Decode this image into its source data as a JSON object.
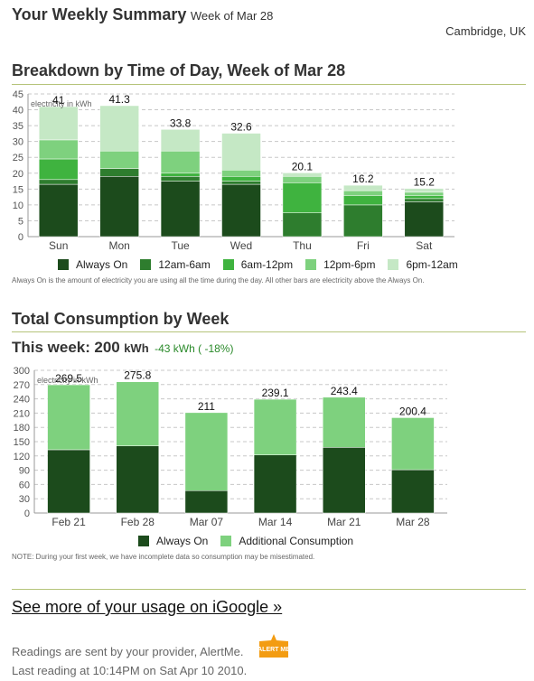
{
  "header": {
    "title": "Your Weekly Summary",
    "week": "Week of Mar 28",
    "location": "Cambridge, UK"
  },
  "breakdown": {
    "title": "Breakdown by Time of Day, Week of Mar 28",
    "note": "Always On is the amount of electricity you are using all the time during the day. All other bars are electricity above the Always On."
  },
  "total": {
    "title": "Total Consumption by Week",
    "this_week_label": "This week:",
    "this_week_value": "200",
    "this_week_unit": "kWh",
    "change": "-43 kWh ( -18%)",
    "change_color": "#2a8a2a",
    "note": "NOTE: During your first week, we have incomplete data so consumption may be misestimated."
  },
  "footer": {
    "link": "See more of your usage on iGoogle »",
    "line1": "Readings are sent by your provider, AlertMe.",
    "line2": "Last reading at 10:14PM on Sat Apr 10 2010.",
    "logo_text": "ALERT ME",
    "logo_color": "#f39c12"
  },
  "chart_data": [
    {
      "type": "bar",
      "stacked": true,
      "unit_label": "electricity in kWh",
      "ylim": [
        0,
        45
      ],
      "yticks": [
        0,
        5,
        10,
        15,
        20,
        25,
        30,
        35,
        40,
        45
      ],
      "grid": true,
      "legend_position": "bottom",
      "categories": [
        "Sun",
        "Mon",
        "Tue",
        "Wed",
        "Thu",
        "Fri",
        "Sat"
      ],
      "totals": [
        "41",
        "41.3",
        "33.8",
        "32.6",
        "20.1",
        "16.2",
        "15.2"
      ],
      "series": [
        {
          "name": "Always On",
          "color": "#1c4b1c",
          "values": [
            16.5,
            19,
            17.5,
            16.5,
            0,
            0,
            11
          ]
        },
        {
          "name": "12am-6am",
          "color": "#2e7d2e",
          "values": [
            1.5,
            2.5,
            1.5,
            1,
            7.5,
            10,
            1
          ]
        },
        {
          "name": "6am-12pm",
          "color": "#3fb33f",
          "values": [
            6.5,
            0,
            1,
            1.5,
            9.5,
            3,
            1
          ]
        },
        {
          "name": "12pm-6pm",
          "color": "#7ed17e",
          "values": [
            6,
            5.5,
            7,
            2,
            2,
            1.5,
            1
          ]
        },
        {
          "name": "6pm-12am",
          "color": "#c5e8c5",
          "values": [
            10.5,
            14.3,
            6.8,
            11.6,
            1.1,
            1.7,
            1.2
          ]
        }
      ]
    },
    {
      "type": "bar",
      "stacked": true,
      "unit_label": "electricity in kWh",
      "ylim": [
        0,
        300
      ],
      "yticks": [
        0,
        30,
        60,
        90,
        120,
        150,
        180,
        210,
        240,
        270,
        300
      ],
      "grid": true,
      "legend_position": "bottom",
      "categories": [
        "Feb 21",
        "Feb 28",
        "Mar 07",
        "Mar 14",
        "Mar 21",
        "Mar 28"
      ],
      "totals": [
        "269.5",
        "275.8",
        "211",
        "239.1",
        "243.4",
        "200.4"
      ],
      "series": [
        {
          "name": "Always On",
          "color": "#1c4b1c",
          "values": [
            133,
            141,
            47,
            122,
            138,
            91
          ]
        },
        {
          "name": "Additional Consumption",
          "color": "#7ed17e",
          "values": [
            136.5,
            134.8,
            164,
            117.1,
            105.4,
            109.4
          ]
        }
      ]
    }
  ]
}
